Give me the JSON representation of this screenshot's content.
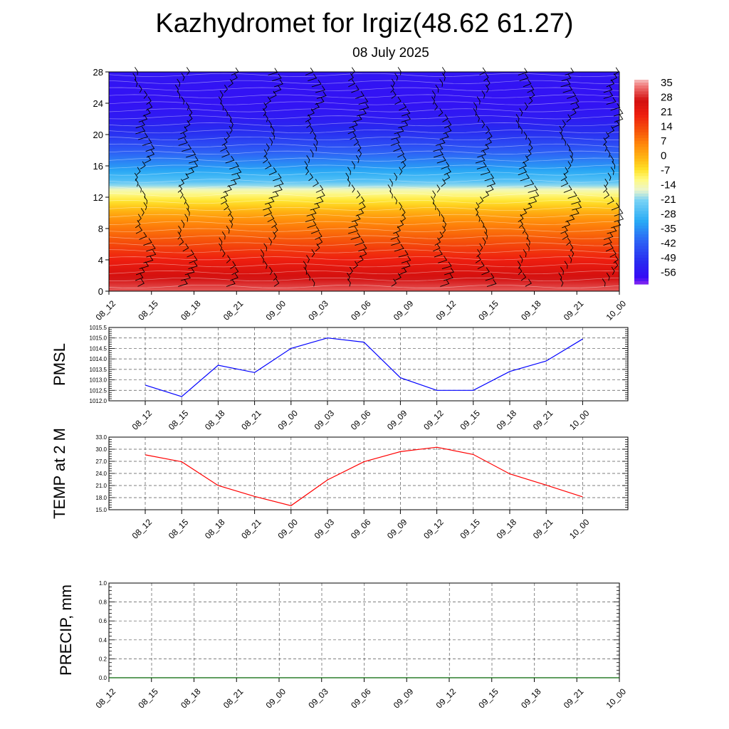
{
  "title": "Kazhydromet for Irgiz(48.62 61.27)",
  "subtitle": "08 July 2025",
  "time_labels": [
    "08_12",
    "08_15",
    "08_18",
    "08_21",
    "09_00",
    "09_03",
    "09_06",
    "09_09",
    "09_12",
    "09_15",
    "09_18",
    "09_21",
    "10_00"
  ],
  "chart_data": [
    {
      "type": "heatmap",
      "panel": "vertical-cross-section",
      "x": [
        "08_12",
        "08_15",
        "08_18",
        "08_21",
        "09_00",
        "09_03",
        "09_06",
        "09_09",
        "09_12",
        "09_15",
        "09_18",
        "09_21",
        "10_00"
      ],
      "yticks": [
        0,
        4,
        8,
        12,
        16,
        20,
        24,
        28
      ],
      "ylim": [
        0,
        28
      ],
      "colorbar": {
        "labels": [
          "35",
          "28",
          "21",
          "14",
          "7",
          "0",
          "-7",
          "-14",
          "-21",
          "-28",
          "-35",
          "-42",
          "-49",
          "-56"
        ],
        "range": [
          -60,
          38
        ]
      },
      "profile_y": [
        0,
        2,
        4,
        6,
        8,
        9,
        10,
        11,
        12,
        13,
        14,
        16,
        18,
        20,
        22,
        24,
        26,
        28
      ],
      "profile_values": [
        33,
        27,
        21,
        15,
        9,
        6,
        2,
        -3,
        -8,
        -14,
        -24,
        -33,
        -41,
        -48,
        -53,
        -55,
        -55,
        -54
      ],
      "wind_barbs": true
    },
    {
      "type": "line",
      "ylabel": "PMSL",
      "x": [
        "08_12",
        "08_15",
        "08_18",
        "08_21",
        "09_00",
        "09_03",
        "09_06",
        "09_09",
        "09_12",
        "09_15",
        "09_18",
        "09_21",
        "10_00"
      ],
      "values": [
        1012.75,
        1012.2,
        1013.7,
        1013.35,
        1014.5,
        1015.0,
        1014.8,
        1013.1,
        1012.5,
        1012.5,
        1013.4,
        1013.9,
        1014.95
      ],
      "ylim": [
        1012.0,
        1015.5
      ],
      "yticks": [
        "1012.0",
        "1012.5",
        "1013.0",
        "1013.5",
        "1014.0",
        "1014.5",
        "1015.0",
        "1015.5"
      ],
      "color": "#0000ff",
      "grid": true
    },
    {
      "type": "line",
      "ylabel": "TEMP at 2 M",
      "x": [
        "08_12",
        "08_15",
        "08_18",
        "08_21",
        "09_00",
        "09_03",
        "09_06",
        "09_09",
        "09_12",
        "09_15",
        "09_18",
        "09_21",
        "10_00"
      ],
      "values": [
        28.6,
        26.9,
        21.0,
        18.3,
        16.0,
        22.4,
        26.9,
        29.4,
        30.5,
        28.7,
        23.9,
        21.1,
        18.2
      ],
      "ylim": [
        15.0,
        33.0
      ],
      "yticks": [
        "15.0",
        "18.0",
        "21.0",
        "24.0",
        "27.0",
        "30.0",
        "33.0"
      ],
      "color": "#ff0000",
      "grid": true
    },
    {
      "type": "line",
      "ylabel": "PRECIP, mm",
      "x": [
        "08_12",
        "08_15",
        "08_18",
        "08_21",
        "09_00",
        "09_03",
        "09_06",
        "09_09",
        "09_12",
        "09_15",
        "09_18",
        "09_21",
        "10_00"
      ],
      "values": [
        0,
        0,
        0,
        0,
        0,
        0,
        0,
        0,
        0,
        0,
        0,
        0,
        0
      ],
      "ylim": [
        0.0,
        1.0
      ],
      "yticks": [
        "0.0",
        "0.2",
        "0.4",
        "0.6",
        "0.8",
        "1.0"
      ],
      "color": "#006400",
      "grid": true
    }
  ]
}
